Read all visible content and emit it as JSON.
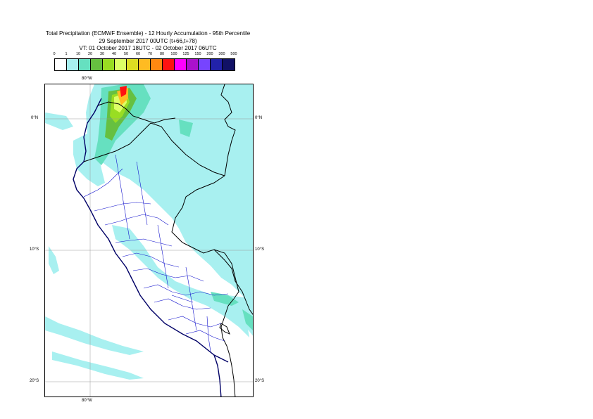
{
  "title": {
    "line1": "Total Precipitation (ECMWF Ensemble) - 12 Hourly Accumulation - 95th Percentile",
    "line2": "29 September 2017 00UTC (t+66,t+78)",
    "line3": "VT: 01 October 2017 18UTC - 02 October 2017 06UTC"
  },
  "legend": {
    "labels": [
      "0",
      "1",
      "10",
      "20",
      "30",
      "40",
      "50",
      "60",
      "70",
      "80",
      "100",
      "125",
      "150",
      "200",
      "300",
      "500"
    ],
    "colors": [
      "#ffffff",
      "#a8f0f0",
      "#66e0c0",
      "#66c040",
      "#99dd22",
      "#ddff66",
      "#dddd22",
      "#ffbb22",
      "#ff8811",
      "#ff1111",
      "#ff00ff",
      "#aa11cc",
      "#7744ff",
      "#2222aa",
      "#111166"
    ]
  },
  "map": {
    "lat_labels": [
      "0°N",
      "10°S",
      "20°S"
    ],
    "lon_labels": [
      "80°W",
      "80°W"
    ]
  }
}
